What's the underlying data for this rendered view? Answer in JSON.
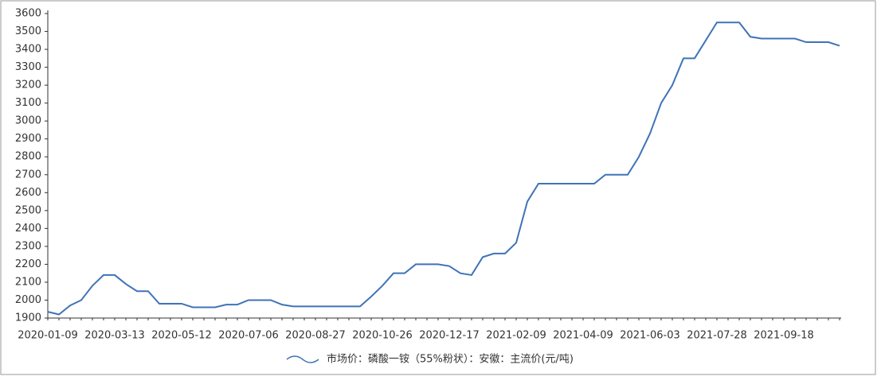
{
  "chart_data": {
    "type": "line",
    "categories": [
      "2020-01-09",
      null,
      null,
      null,
      null,
      null,
      "2020-03-13",
      null,
      null,
      null,
      null,
      null,
      "2020-05-12",
      null,
      null,
      null,
      null,
      null,
      "2020-07-06",
      null,
      null,
      null,
      null,
      null,
      "2020-08-27",
      null,
      null,
      null,
      null,
      null,
      "2020-10-26",
      null,
      null,
      null,
      null,
      null,
      "2020-12-17",
      null,
      null,
      null,
      null,
      null,
      "2021-02-09",
      null,
      null,
      null,
      null,
      null,
      "2021-04-09",
      null,
      null,
      null,
      null,
      null,
      "2021-06-03",
      null,
      null,
      null,
      null,
      null,
      "2021-07-28",
      null,
      null,
      null,
      null,
      null,
      "2021-09-18",
      null,
      null,
      null,
      null,
      null
    ],
    "series": [
      {
        "name": "市场价：磷酸一铵（55%粉状）：安徽：主流价(元/吨)",
        "color": "#3f73b8",
        "values": [
          1935,
          1920,
          1970,
          2000,
          2080,
          2140,
          2140,
          2090,
          2050,
          2050,
          1980,
          1980,
          1980,
          1960,
          1960,
          1960,
          1975,
          1975,
          2000,
          2000,
          2000,
          1975,
          1965,
          1965,
          1965,
          1965,
          1965,
          1965,
          1965,
          2020,
          2080,
          2150,
          2150,
          2200,
          2200,
          2200,
          2190,
          2150,
          2140,
          2240,
          2260,
          2260,
          2320,
          2550,
          2650,
          2650,
          2650,
          2650,
          2650,
          2650,
          2700,
          2700,
          2700,
          2800,
          2930,
          3100,
          3200,
          3350,
          3350,
          3450,
          3550,
          3550,
          3550,
          3470,
          3460,
          3460,
          3460,
          3460,
          3440,
          3440,
          3440,
          3420
        ]
      }
    ],
    "ylim": [
      1900,
      3600
    ],
    "yticks": [
      1900,
      2000,
      2100,
      2200,
      2300,
      2400,
      2500,
      2600,
      2700,
      2800,
      2900,
      3000,
      3100,
      3200,
      3300,
      3400,
      3500,
      3600
    ],
    "grid": false
  }
}
